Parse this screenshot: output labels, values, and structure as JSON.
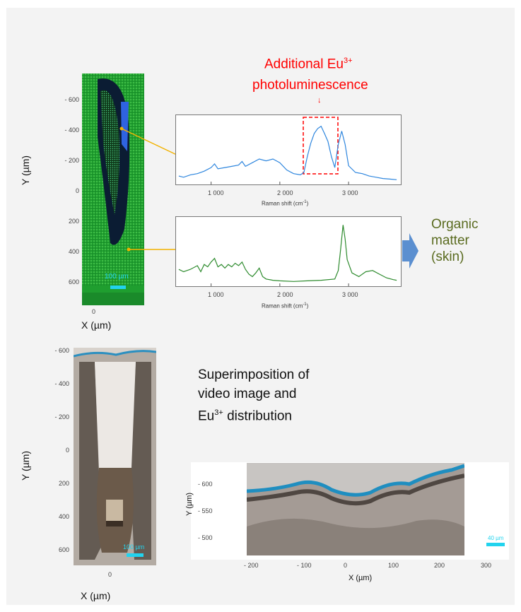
{
  "annotation": {
    "eu_title_line1": "Additional Eu",
    "eu_title_sup": "3+",
    "eu_title_line2": "photoluminescence",
    "color": "#ff0000",
    "arrow": "↓"
  },
  "organic": {
    "line1": "Organic",
    "line2": "matter",
    "line3": "(skin)",
    "color": "#5a6b1f",
    "arrow_color": "#5b8fd0"
  },
  "map1": {
    "y_ticks": [
      "- 600",
      "- 400",
      "- 200",
      "0",
      "200",
      "400",
      "600"
    ],
    "x_ticks": [
      "0"
    ],
    "y_axis_label": "Y (µm)",
    "x_axis_label": "X (µm)",
    "scale_bar": "100 µm"
  },
  "spectra": {
    "x_axis_label_prefix": "Raman shift (cm",
    "x_axis_label_sup": "-1",
    "x_axis_label_suffix": ")",
    "x_ticks": [
      "1 000",
      "2 000",
      "3 000"
    ]
  },
  "superimposition": {
    "line1": "Superimposition of",
    "line2": "video image and",
    "line3_prefix": "Eu",
    "line3_sup": "3+",
    "line3_suffix": " distribution"
  },
  "map2": {
    "y_ticks": [
      "- 600",
      "- 400",
      "- 200",
      "0",
      "200",
      "400",
      "600"
    ],
    "x_ticks": [
      "0"
    ],
    "y_axis_label": "Y (µm)",
    "x_axis_label": "X (µm)",
    "scale_bar": "100 µm"
  },
  "map3": {
    "y_ticks": [
      "- 600",
      "- 550",
      "- 500"
    ],
    "x_ticks": [
      "- 200",
      "- 100",
      "0",
      "100",
      "200",
      "300"
    ],
    "y_axis_label": "Y (µm)",
    "x_axis_label": "X (µm)",
    "scale_bar": "40 µm"
  },
  "chart_data": [
    {
      "type": "line",
      "name": "spectrum_eu_region",
      "xlim": [
        500,
        3750
      ],
      "x": [
        530,
        600,
        700,
        800,
        900,
        1000,
        1050,
        1100,
        1200,
        1300,
        1400,
        1450,
        1500,
        1600,
        1700,
        1800,
        1900,
        2000,
        2100,
        2200,
        2300,
        2350,
        2400,
        2450,
        2500,
        2550,
        2600,
        2650,
        2700,
        2750,
        2800,
        2850,
        2900,
        2950,
        3000,
        3100,
        3200,
        3300,
        3400,
        3500,
        3600,
        3700
      ],
      "y": [
        0.08,
        0.06,
        0.1,
        0.12,
        0.16,
        0.22,
        0.28,
        0.2,
        0.22,
        0.24,
        0.26,
        0.32,
        0.24,
        0.3,
        0.36,
        0.33,
        0.36,
        0.3,
        0.18,
        0.12,
        0.1,
        0.14,
        0.4,
        0.62,
        0.78,
        0.86,
        0.9,
        0.78,
        0.65,
        0.4,
        0.22,
        0.6,
        0.82,
        0.6,
        0.25,
        0.14,
        0.12,
        0.08,
        0.06,
        0.04,
        0.03,
        0.02
      ],
      "color": "#2e86de"
    },
    {
      "type": "line",
      "name": "spectrum_organic",
      "xlim": [
        500,
        3750
      ],
      "x": [
        530,
        600,
        700,
        800,
        850,
        900,
        950,
        1000,
        1050,
        1100,
        1150,
        1200,
        1250,
        1300,
        1350,
        1400,
        1450,
        1500,
        1550,
        1600,
        1650,
        1700,
        1750,
        1800,
        1900,
        2000,
        2200,
        2400,
        2600,
        2800,
        2850,
        2880,
        2920,
        2950,
        2980,
        3050,
        3150,
        3250,
        3350,
        3450,
        3550,
        3650,
        3700
      ],
      "y": [
        0.22,
        0.18,
        0.22,
        0.28,
        0.18,
        0.3,
        0.26,
        0.34,
        0.4,
        0.26,
        0.3,
        0.24,
        0.3,
        0.26,
        0.32,
        0.28,
        0.34,
        0.22,
        0.14,
        0.1,
        0.16,
        0.24,
        0.1,
        0.06,
        0.04,
        0.03,
        0.02,
        0.03,
        0.04,
        0.06,
        0.2,
        0.5,
        0.95,
        0.72,
        0.38,
        0.16,
        0.1,
        0.18,
        0.2,
        0.14,
        0.08,
        0.05,
        0.04
      ],
      "color": "#2e8b2e"
    }
  ],
  "colors": {
    "leader": "#f2b200",
    "scale_bar": "#22d3ee",
    "dashed_box": "#ff0000"
  }
}
